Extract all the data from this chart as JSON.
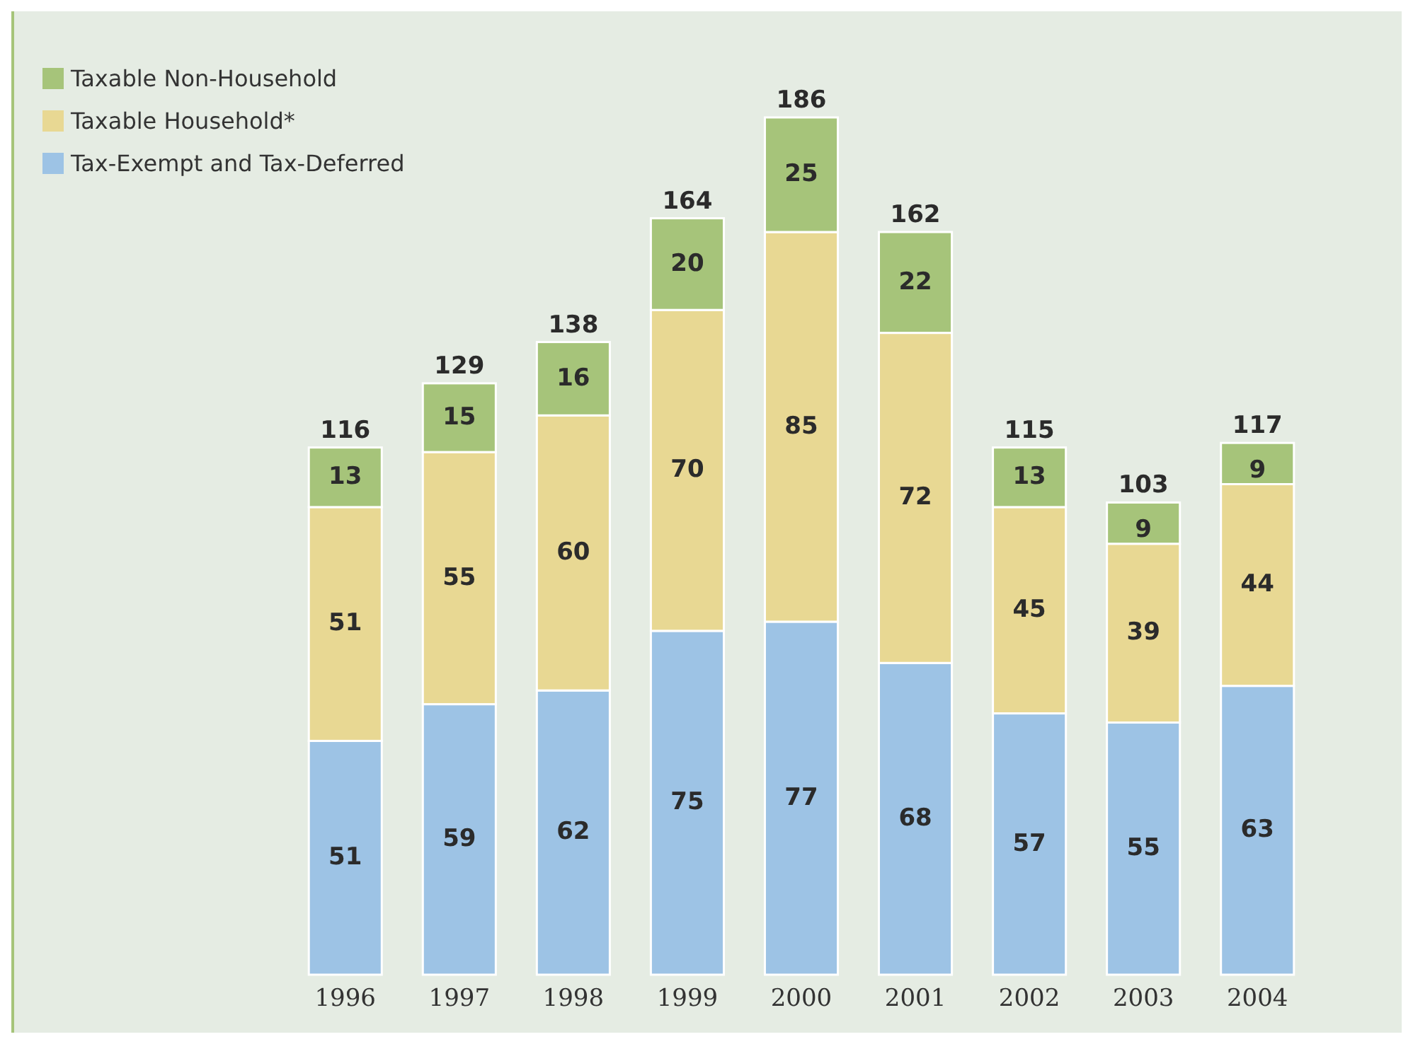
{
  "chart_data": {
    "type": "bar",
    "stacked": true,
    "data_labels": true,
    "legend": "top left",
    "categories": [
      "1996",
      "1997",
      "1998",
      "1999",
      "2000",
      "2001",
      "2002",
      "2003",
      "2004"
    ],
    "series": [
      {
        "name": "Tax-Exempt and Tax-Deferred",
        "color": "#9dc3e5",
        "values": [
          51,
          59,
          62,
          75,
          77,
          68,
          57,
          55,
          63
        ]
      },
      {
        "name": "Taxable Household*",
        "color": "#e8d893",
        "values": [
          51,
          55,
          60,
          70,
          85,
          72,
          45,
          39,
          44
        ]
      },
      {
        "name": "Taxable Non-Household",
        "color": "#a6c47a",
        "values": [
          13,
          15,
          16,
          20,
          25,
          22,
          13,
          9,
          9
        ]
      }
    ],
    "totals": [
      "116",
      "129",
      "138",
      "164",
      "186",
      "162",
      "115",
      "103",
      "117"
    ]
  }
}
